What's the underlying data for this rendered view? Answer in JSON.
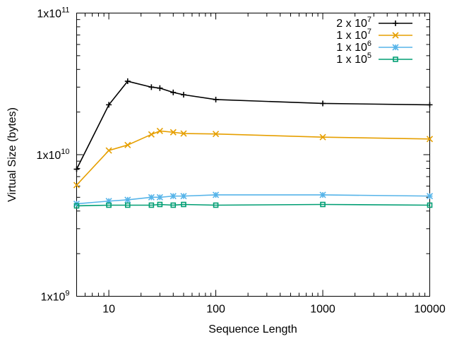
{
  "chart_data": {
    "type": "line",
    "title": "",
    "xlabel": "Sequence Length",
    "ylabel": "Virtual Size (bytes)",
    "x_scale": "log",
    "y_scale": "log",
    "xlim": [
      5,
      10000
    ],
    "ylim": [
      1000000000,
      100000000000
    ],
    "grid": false,
    "legend_position": "top-right",
    "x_ticks": [
      {
        "value": 10,
        "label": "10"
      },
      {
        "value": 100,
        "label": "100"
      },
      {
        "value": 1000,
        "label": "1000"
      },
      {
        "value": 10000,
        "label": "10000"
      }
    ],
    "y_ticks": [
      {
        "value": 1000000000,
        "base": "1x10",
        "exp": "9"
      },
      {
        "value": 10000000000,
        "base": "1x10",
        "exp": "10"
      },
      {
        "value": 100000000000,
        "base": "1x10",
        "exp": "11"
      }
    ],
    "series": [
      {
        "name": "2 x 10^7",
        "legend_base": "2 x 10",
        "legend_exp": "7",
        "color": "#000000",
        "marker": "plus",
        "x": [
          5,
          10,
          15,
          25,
          30,
          40,
          50,
          100,
          1000,
          10000
        ],
        "values": [
          7900000000,
          22500000000,
          33000000000,
          30000000000,
          29500000000,
          27500000000,
          26500000000,
          24500000000,
          23000000000,
          22500000000
        ]
      },
      {
        "name": "1 x 10^7",
        "legend_base": "1 x 10",
        "legend_exp": "7",
        "color": "#e69f00",
        "marker": "cross",
        "x": [
          5,
          10,
          15,
          25,
          30,
          40,
          50,
          100,
          1000,
          10000
        ],
        "values": [
          6100000000,
          10700000000,
          11700000000,
          13900000000,
          14700000000,
          14400000000,
          14100000000,
          14000000000,
          13300000000,
          12900000000
        ]
      },
      {
        "name": "1 x 10^6",
        "legend_base": "1 x 10",
        "legend_exp": "6",
        "color": "#56b4e9",
        "marker": "star",
        "x": [
          5,
          10,
          15,
          25,
          30,
          40,
          50,
          100,
          1000,
          10000
        ],
        "values": [
          4500000000,
          4700000000,
          4800000000,
          5000000000,
          5000000000,
          5100000000,
          5100000000,
          5200000000,
          5200000000,
          5100000000
        ]
      },
      {
        "name": "1 x 10^5",
        "legend_base": "1 x 10",
        "legend_exp": "5",
        "color": "#009e73",
        "marker": "square",
        "x": [
          5,
          10,
          15,
          25,
          30,
          40,
          50,
          100,
          1000,
          10000
        ],
        "values": [
          4350000000,
          4400000000,
          4400000000,
          4400000000,
          4450000000,
          4400000000,
          4450000000,
          4400000000,
          4450000000,
          4400000000
        ]
      }
    ]
  }
}
